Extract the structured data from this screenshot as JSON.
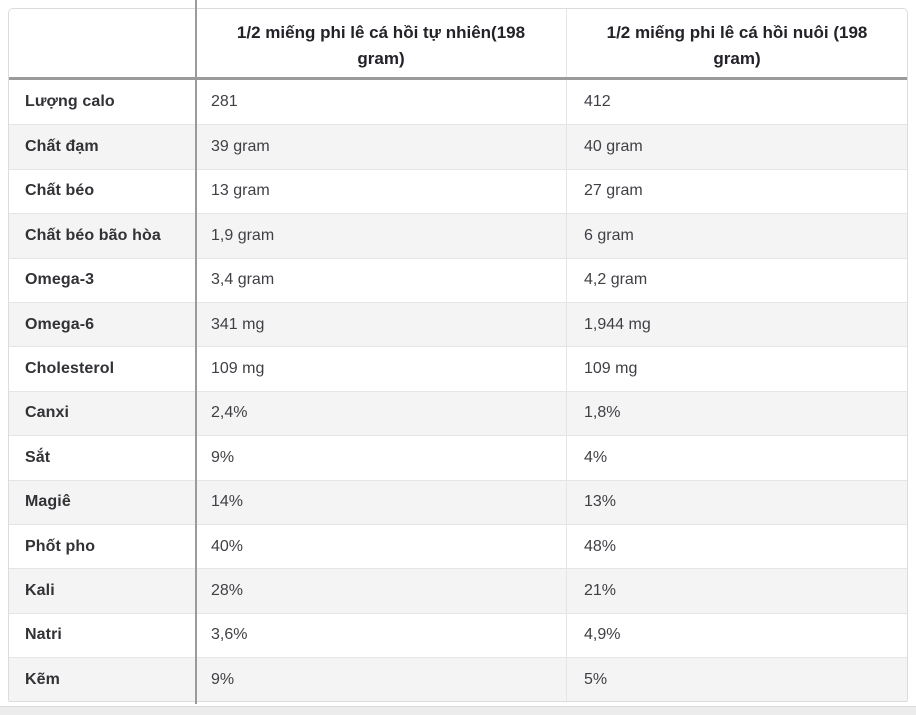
{
  "table": {
    "header": {
      "blank": "",
      "wild": "1/2 miếng phi lê cá hồi tự nhiên(198 gram)",
      "farmed": "1/2 miếng phi lê cá hồi nuôi (198 gram)"
    },
    "rows": [
      {
        "label": "Lượng calo",
        "wild": "281",
        "farmed": "412"
      },
      {
        "label": "Chất đạm",
        "wild": "39 gram",
        "farmed": "40 gram"
      },
      {
        "label": "Chất béo",
        "wild": "13 gram",
        "farmed": "27 gram"
      },
      {
        "label": "Chất béo bão hòa",
        "wild": "1,9 gram",
        "farmed": "6 gram"
      },
      {
        "label": "Omega-3",
        "wild": "3,4 gram",
        "farmed": "4,2 gram"
      },
      {
        "label": "Omega-6",
        "wild": "341 mg",
        "farmed": "1,944 mg"
      },
      {
        "label": "Cholesterol",
        "wild": "109 mg",
        "farmed": "109 mg"
      },
      {
        "label": "Canxi",
        "wild": "2,4%",
        "farmed": "1,8%"
      },
      {
        "label": "Sắt",
        "wild": "9%",
        "farmed": "4%"
      },
      {
        "label": "Magiê",
        "wild": "14%",
        "farmed": "13%"
      },
      {
        "label": "Phốt pho",
        "wild": "40%",
        "farmed": "48%"
      },
      {
        "label": "Kali",
        "wild": "28%",
        "farmed": "21%"
      },
      {
        "label": "Natri",
        "wild": "3,6%",
        "farmed": "4,9%"
      },
      {
        "label": "Kẽm",
        "wild": "9%",
        "farmed": "5%"
      }
    ],
    "colors": {
      "row_alt_background": "#f4f4f4",
      "divider_dark": "#9b9b9b",
      "border_light": "#e5e5e5",
      "header_text": "#222228",
      "label_text": "#313136",
      "value_text": "#3f3f45",
      "bottom_strip": "#ececec"
    }
  }
}
